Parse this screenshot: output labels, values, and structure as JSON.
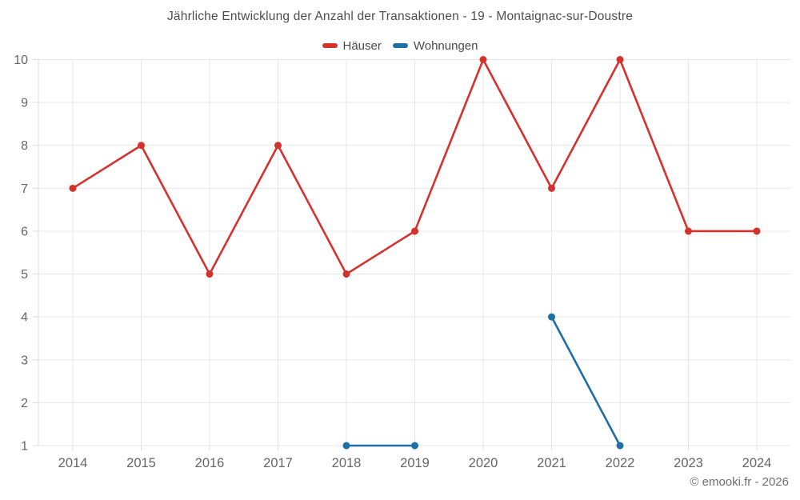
{
  "title": "Jährliche Entwicklung der Anzahl der Transaktionen - 19 - Montaignac-sur-Doustre",
  "legend": {
    "items": [
      {
        "label": "Häuser",
        "color": "#d5312d"
      },
      {
        "label": "Wohnungen",
        "color": "#1d6fa5"
      }
    ]
  },
  "footer": "© emooki.fr - 2026",
  "chart_data": {
    "type": "line",
    "title": "Jährliche Entwicklung der Anzahl der Transaktionen - 19 - Montaignac-sur-Doustre",
    "x": [
      2014,
      2015,
      2016,
      2017,
      2018,
      2019,
      2020,
      2021,
      2022,
      2023,
      2024
    ],
    "series": [
      {
        "name": "Häuser",
        "color": "#d5312d",
        "values": [
          7,
          8,
          5,
          8,
          5,
          6,
          10,
          7,
          10,
          6,
          6
        ]
      },
      {
        "name": "Wohnungen",
        "color": "#1d6fa5",
        "values": [
          null,
          null,
          null,
          null,
          1,
          1,
          null,
          4,
          1,
          null,
          null
        ]
      }
    ],
    "xlabel": "",
    "ylabel": "",
    "ylim": [
      1,
      10
    ],
    "yticks": [
      1,
      2,
      3,
      4,
      5,
      6,
      7,
      8,
      9,
      10
    ],
    "grid": true,
    "legend_position": "top",
    "grid_color": "#e7e7e7",
    "axis_color": "#dcdcdc",
    "tick_label_color": "#666666",
    "marker_radius": 4.5,
    "line_width": 2.6
  }
}
